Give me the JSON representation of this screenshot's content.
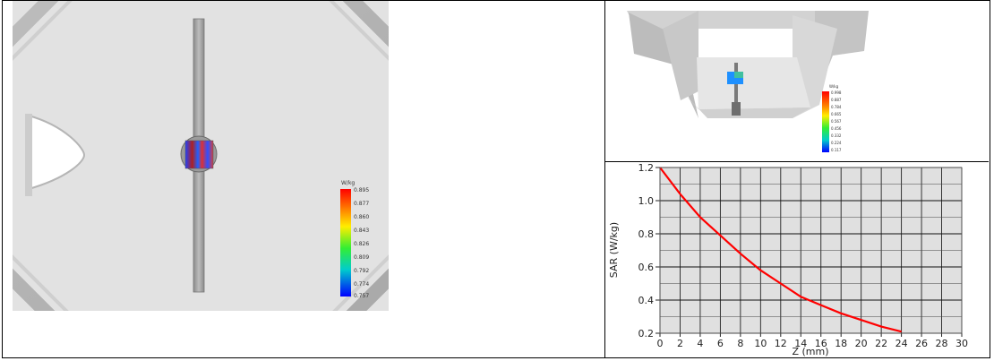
{
  "left_panel": {
    "legend": {
      "units": "W/kg",
      "ticks": [
        "0.895",
        "0.877",
        "0.860",
        "0.843",
        "0.826",
        "0.809",
        "0.792",
        "0.774",
        "0.757"
      ]
    }
  },
  "top_right_panel": {
    "legend": {
      "units": "W/kg",
      "ticks": [
        "0.998",
        "0.887",
        "0.784",
        "0.665",
        "0.567",
        "0.456",
        "0.332",
        "0.224",
        "0.117"
      ]
    }
  },
  "chart_data": {
    "type": "line",
    "xlabel": "Z (mm)",
    "ylabel": "SAR (W/kg)",
    "xlim": [
      0,
      30
    ],
    "ylim": [
      0.2,
      1.2
    ],
    "x_ticks": [
      "0",
      "2",
      "4",
      "6",
      "8",
      "10",
      "12",
      "14",
      "16",
      "18",
      "20",
      "22",
      "24",
      "26",
      "28",
      "30"
    ],
    "y_ticks": [
      "0.2",
      "0.4",
      "0.6",
      "0.8",
      "1.0",
      "1.2"
    ],
    "grid": true,
    "line_color": "#ff0000",
    "series": [
      {
        "x": [
          0,
          2,
          4,
          6,
          8,
          10,
          12,
          14,
          16,
          18,
          20,
          22,
          24
        ],
        "values": [
          1.2,
          1.04,
          0.9,
          0.79,
          0.68,
          0.58,
          0.5,
          0.42,
          0.37,
          0.32,
          0.28,
          0.24,
          0.21
        ]
      }
    ]
  }
}
